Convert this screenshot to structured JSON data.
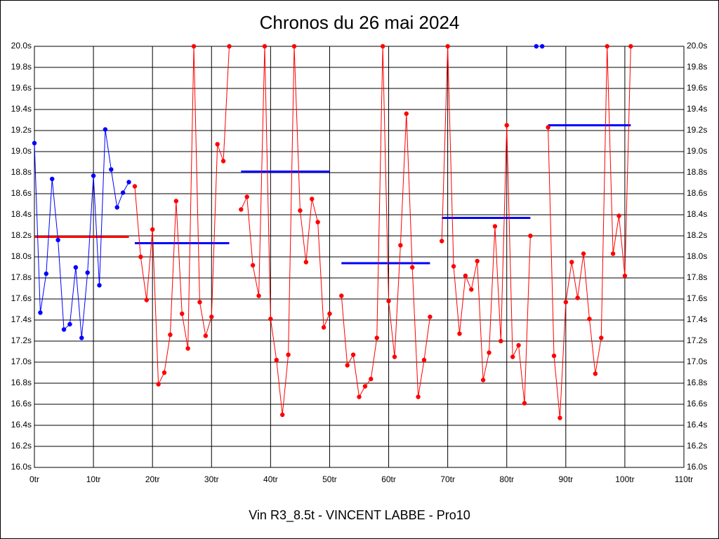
{
  "chart_data": {
    "type": "line",
    "title": "Chronos du 26 mai 2024",
    "xlabel": "Vin R3_8.5t - VINCENT LABBE - Pro10",
    "xlim": [
      0,
      110
    ],
    "ylim": [
      16.0,
      20.0
    ],
    "grid": true,
    "xticks": [
      {
        "value": 0,
        "label": "0tr"
      },
      {
        "value": 10,
        "label": "10tr"
      },
      {
        "value": 20,
        "label": "20tr"
      },
      {
        "value": 30,
        "label": "30tr"
      },
      {
        "value": 40,
        "label": "40tr"
      },
      {
        "value": 50,
        "label": "50tr"
      },
      {
        "value": 60,
        "label": "60tr"
      },
      {
        "value": 70,
        "label": "70tr"
      },
      {
        "value": 80,
        "label": "80tr"
      },
      {
        "value": 90,
        "label": "90tr"
      },
      {
        "value": 100,
        "label": "100tr"
      },
      {
        "value": 110,
        "label": "110tr"
      }
    ],
    "yticks": [
      {
        "value": 16.0,
        "label": "16.0s"
      },
      {
        "value": 16.2,
        "label": "16.2s"
      },
      {
        "value": 16.4,
        "label": "16.4s"
      },
      {
        "value": 16.6,
        "label": "16.6s"
      },
      {
        "value": 16.8,
        "label": "16.8s"
      },
      {
        "value": 17.0,
        "label": "17.0s"
      },
      {
        "value": 17.2,
        "label": "17.2s"
      },
      {
        "value": 17.4,
        "label": "17.4s"
      },
      {
        "value": 17.6,
        "label": "17.6s"
      },
      {
        "value": 17.8,
        "label": "17.8s"
      },
      {
        "value": 18.0,
        "label": "18.0s"
      },
      {
        "value": 18.2,
        "label": "18.2s"
      },
      {
        "value": 18.4,
        "label": "18.4s"
      },
      {
        "value": 18.6,
        "label": "18.6s"
      },
      {
        "value": 18.8,
        "label": "18.8s"
      },
      {
        "value": 19.0,
        "label": "19.0s"
      },
      {
        "value": 19.2,
        "label": "19.2s"
      },
      {
        "value": 19.4,
        "label": "19.4s"
      },
      {
        "value": 19.6,
        "label": "19.6s"
      },
      {
        "value": 19.8,
        "label": "19.8s"
      },
      {
        "value": 20.0,
        "label": "20.0s"
      }
    ],
    "x": [
      0,
      1,
      2,
      3,
      4,
      5,
      6,
      7,
      8,
      9,
      10,
      11,
      12,
      13,
      14,
      15,
      16,
      17,
      18,
      19,
      20,
      21,
      22,
      23,
      24,
      25,
      26,
      27,
      28,
      29,
      30,
      31,
      32,
      33,
      34,
      35,
      36,
      37,
      38,
      39,
      40,
      41,
      42,
      43,
      44,
      45,
      46,
      47,
      48,
      49,
      50,
      51,
      52,
      53,
      54,
      55,
      56,
      57,
      58,
      59,
      60,
      61,
      62,
      63,
      64,
      65,
      66,
      67,
      68,
      69,
      70,
      71,
      72,
      73,
      74,
      75,
      76,
      77,
      78,
      79,
      80,
      81,
      82,
      83,
      84,
      85,
      86,
      87,
      88,
      89,
      90,
      91,
      92,
      93,
      94,
      95,
      96,
      97,
      98,
      99,
      100,
      101
    ],
    "series": [
      {
        "color": "#0000ff",
        "values": [
          19.08,
          17.47,
          17.84,
          18.74,
          18.16,
          17.31,
          17.36,
          17.9,
          17.23,
          17.85,
          18.77,
          17.73,
          19.21,
          18.83,
          18.47,
          18.61,
          18.71,
          null,
          null,
          null,
          null,
          null,
          null,
          null,
          null,
          null,
          null,
          null,
          null,
          null,
          null,
          null,
          null,
          null,
          null,
          null,
          null,
          null,
          null,
          null,
          null,
          null,
          null,
          null,
          null,
          null,
          null,
          null,
          null,
          null,
          null,
          null,
          null,
          null,
          null,
          null,
          null,
          null,
          null,
          null,
          null,
          null,
          null,
          null,
          null,
          null,
          null,
          null,
          null,
          null,
          null,
          null,
          null,
          null,
          null,
          null,
          null,
          null,
          null,
          null,
          null,
          null,
          null,
          null,
          null,
          20.0,
          20.0,
          null,
          null,
          null,
          null,
          null,
          null,
          null,
          null,
          null,
          null,
          null,
          null,
          null,
          null,
          null
        ]
      },
      {
        "color": "#ff0000",
        "values": [
          null,
          null,
          null,
          null,
          null,
          null,
          null,
          null,
          null,
          null,
          null,
          null,
          null,
          null,
          null,
          null,
          null,
          18.67,
          18.0,
          17.59,
          18.26,
          16.79,
          16.9,
          17.26,
          18.53,
          17.46,
          17.13,
          20.0,
          17.57,
          17.25,
          17.43,
          19.07,
          18.91,
          20.0,
          null,
          18.45,
          18.57,
          17.92,
          17.63,
          20.0,
          17.41,
          17.02,
          16.5,
          17.07,
          20.0,
          18.44,
          17.95,
          18.55,
          18.33,
          17.33,
          17.46,
          null,
          17.63,
          16.97,
          17.07,
          16.67,
          16.77,
          16.84,
          17.23,
          20.0,
          17.58,
          17.05,
          18.11,
          19.36,
          17.9,
          16.67,
          17.02,
          17.43,
          null,
          18.15,
          20.0,
          17.91,
          17.27,
          17.82,
          17.69,
          17.96,
          16.83,
          17.09,
          18.29,
          17.2,
          19.25,
          17.05,
          17.16,
          16.61,
          18.2,
          null,
          null,
          19.23,
          17.06,
          16.47,
          17.57,
          17.95,
          17.61,
          18.03,
          17.41,
          16.89,
          17.23,
          20.0,
          18.03,
          18.39,
          17.82,
          20.0
        ]
      }
    ],
    "averages": [
      {
        "x_start": 0,
        "x_end": 16,
        "value": 18.19,
        "color": "#ff0000"
      },
      {
        "x_start": 17,
        "x_end": 33,
        "value": 18.13,
        "color": "#0000ff"
      },
      {
        "x_start": 35,
        "x_end": 50,
        "value": 18.81,
        "color": "#0000ff"
      },
      {
        "x_start": 52,
        "x_end": 67,
        "value": 17.94,
        "color": "#0000ff"
      },
      {
        "x_start": 69,
        "x_end": 84,
        "value": 18.37,
        "color": "#0000ff"
      },
      {
        "x_start": 87,
        "x_end": 101,
        "value": 19.25,
        "color": "#0000ff"
      }
    ]
  }
}
